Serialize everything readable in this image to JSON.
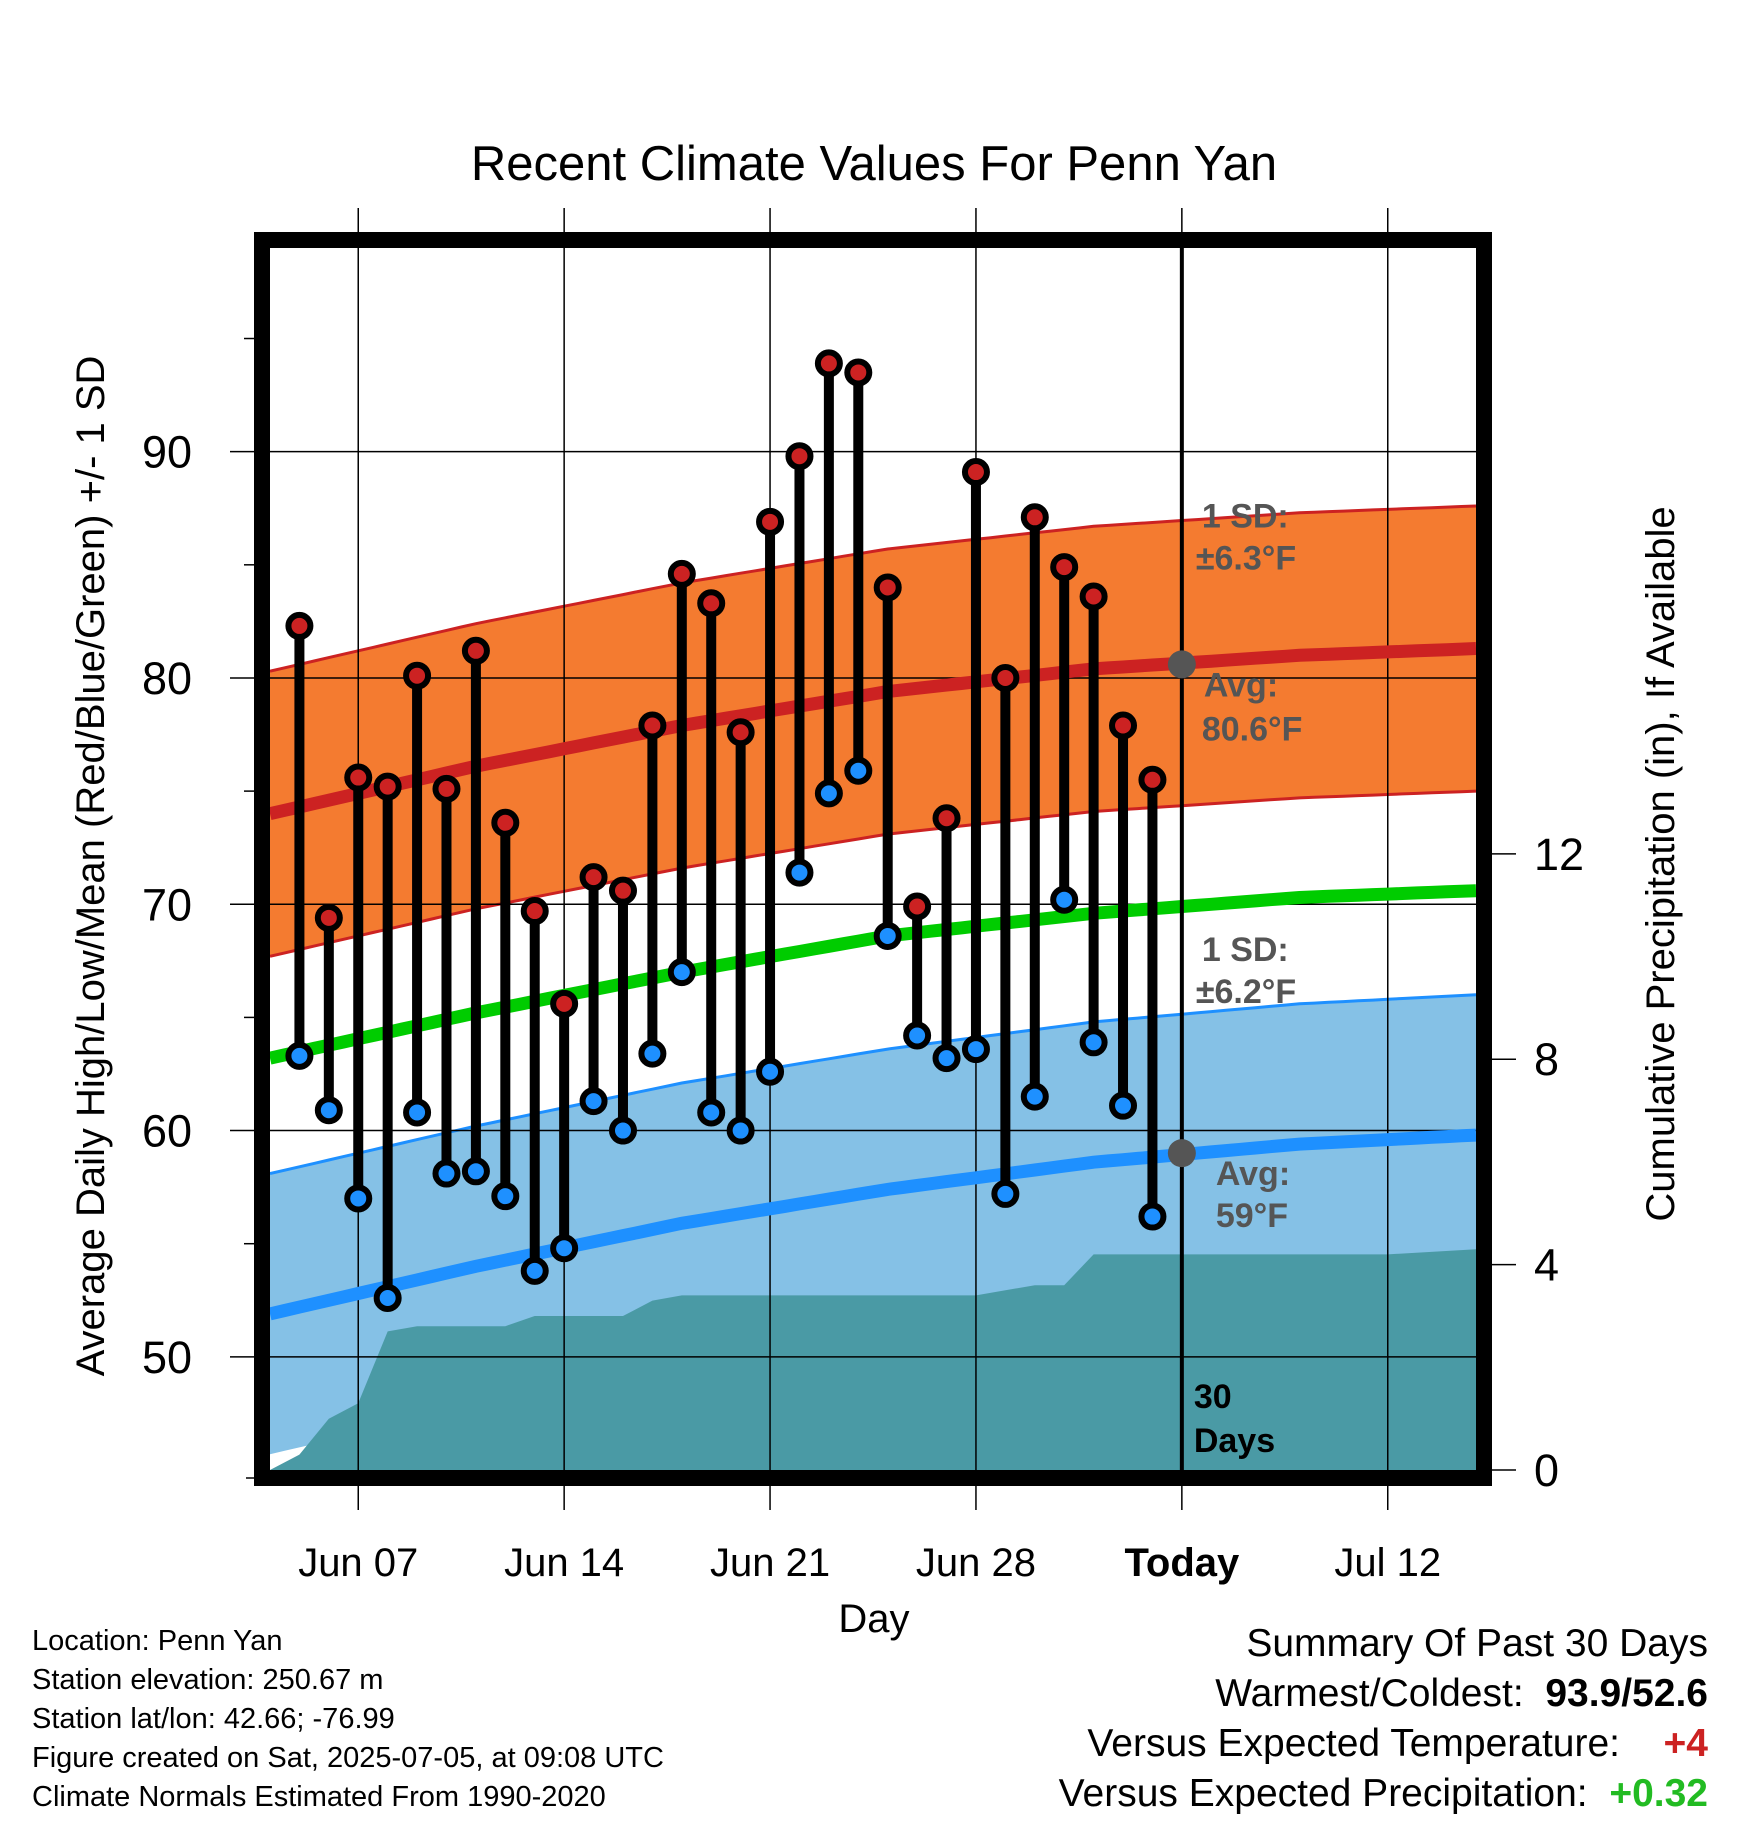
{
  "chart_data": {
    "type": "line",
    "title": "Recent Climate Values For Penn Yan",
    "xlabel": "Day",
    "ylabel_left": "Average Daily High/Low/Mean (Red/Blue/Green) +/- 1 SD",
    "ylabel_right": "Cumulative Precipitation (in), If Available",
    "ylim": [
      45,
      99
    ],
    "y2lim": [
      0,
      23.8
    ],
    "x_range": [
      "2025-06-04",
      "2025-07-15"
    ],
    "x_tick_labels": [
      "Jun 07",
      "Jun 14",
      "Jun 21",
      "Jun 28",
      "Today",
      "Jul 12"
    ],
    "y_tick_labels": [
      "50",
      "60",
      "70",
      "80",
      "90"
    ],
    "y2_tick_labels": [
      "0",
      "4",
      "8",
      "12"
    ],
    "grid": true,
    "days": [
      "2025-06-05",
      "2025-06-06",
      "2025-06-07",
      "2025-06-08",
      "2025-06-09",
      "2025-06-10",
      "2025-06-11",
      "2025-06-12",
      "2025-06-13",
      "2025-06-14",
      "2025-06-15",
      "2025-06-16",
      "2025-06-17",
      "2025-06-18",
      "2025-06-19",
      "2025-06-20",
      "2025-06-21",
      "2025-06-22",
      "2025-06-23",
      "2025-06-24",
      "2025-06-25",
      "2025-06-26",
      "2025-06-27",
      "2025-06-28",
      "2025-06-29",
      "2025-06-30",
      "2025-07-01",
      "2025-07-02",
      "2025-07-03",
      "2025-07-04"
    ],
    "series": [
      {
        "name": "High",
        "color": "#cc2222",
        "values": [
          82.3,
          69.4,
          75.6,
          75.2,
          80.1,
          75.1,
          81.2,
          73.6,
          69.7,
          65.6,
          71.2,
          70.6,
          77.9,
          84.6,
          83.3,
          77.6,
          86.9,
          89.8,
          93.9,
          93.5,
          84.0,
          69.9,
          73.8,
          89.1,
          80.0,
          87.1,
          84.9,
          83.6,
          77.9,
          75.5
        ]
      },
      {
        "name": "Low",
        "color": "#1e90ff",
        "values": [
          63.3,
          60.9,
          57.0,
          52.6,
          60.8,
          58.1,
          58.2,
          57.1,
          53.8,
          54.8,
          61.3,
          60.0,
          63.4,
          67.0,
          60.8,
          60.0,
          62.6,
          71.4,
          74.9,
          75.9,
          68.6,
          64.2,
          63.2,
          63.6,
          57.2,
          61.5,
          70.2,
          63.9,
          61.1,
          56.2
        ]
      }
    ],
    "normals": {
      "dates": [
        "2025-06-04",
        "2025-06-11",
        "2025-06-18",
        "2025-06-25",
        "2025-07-02",
        "2025-07-09",
        "2025-07-15"
      ],
      "avg_high": [
        74.0,
        76.1,
        77.9,
        79.4,
        80.4,
        81.0,
        81.3
      ],
      "avg_low": [
        51.9,
        54.0,
        55.9,
        57.4,
        58.6,
        59.4,
        59.8
      ],
      "avg_mean": [
        63.2,
        65.2,
        67.0,
        68.6,
        69.6,
        70.3,
        70.6
      ],
      "high_sd": 6.3,
      "low_sd": 6.2,
      "colors": {
        "high_band": "#f47b30",
        "high_line": "#cc2222",
        "low_band": "#85c1e6",
        "low_line": "#1e90ff",
        "mean_line": "#00cc00",
        "precip": "#4a9aa5"
      }
    },
    "precip_cumulative": [
      0,
      0.3,
      1.0,
      1.3,
      2.7,
      2.8,
      2.8,
      2.8,
      2.8,
      3.0,
      3.0,
      3.0,
      3.0,
      3.3,
      3.4,
      3.4,
      3.4,
      3.4,
      3.4,
      3.4,
      3.4,
      3.4,
      3.4,
      3.4,
      3.4,
      3.5,
      3.6,
      3.6,
      4.2,
      4.2,
      4.2
    ],
    "precip_extra": [
      [
        "2025-07-12",
        4.2
      ],
      [
        "2025-07-15",
        4.3
      ]
    ],
    "today": "2025-07-05",
    "today_marker": {
      "avg_high": 80.6,
      "avg_low": 59
    },
    "annotations": {
      "high_sd_label": "1 SD:",
      "high_sd_value": "±6.3°F",
      "high_avg_label": "Avg:",
      "high_avg_value": "80.6°F",
      "low_sd_label": "1 SD:",
      "low_sd_value": "±6.2°F",
      "low_avg_label": "Avg:",
      "low_avg_value": "59°F",
      "days_number": "30",
      "days_word": "Days"
    }
  },
  "info": {
    "location": "Location: Penn Yan",
    "elevation": "Station elevation: 250.67 m",
    "latlon": "Station lat/lon: 42.66; -76.99",
    "created": "Figure created on Sat, 2025-07-05, at 09:08 UTC",
    "normals": "Climate Normals Estimated From 1990-2020"
  },
  "summary": {
    "title": "Summary Of Past 30 Days",
    "warm_cold_label": "Warmest/Coldest:",
    "warm_cold_value": "93.9/52.6",
    "temp_label": "Versus Expected Temperature:",
    "temp_value": "+4",
    "temp_color": "#cc2222",
    "precip_label": "Versus Expected Precipitation:",
    "precip_value": "+0.32",
    "precip_color": "#22bb22"
  }
}
